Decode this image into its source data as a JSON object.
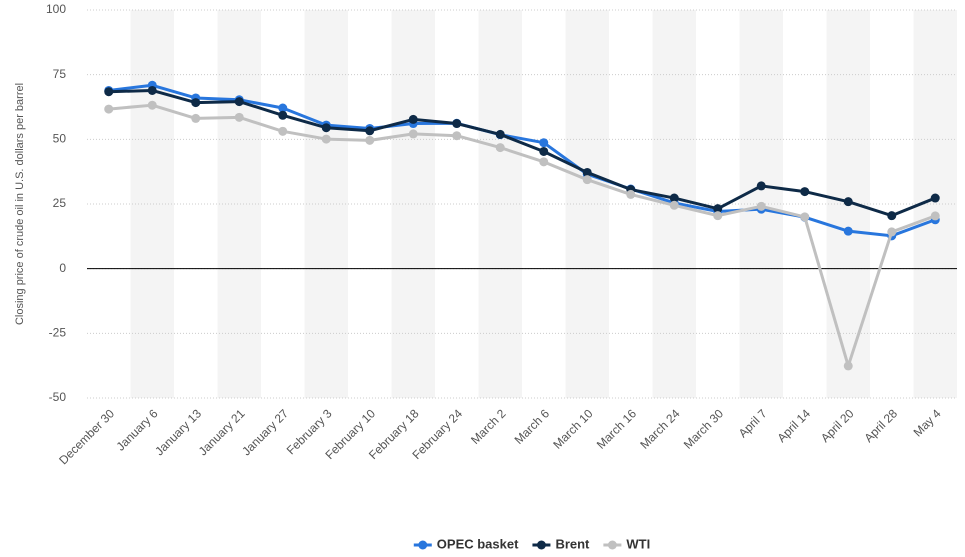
{
  "chart_data": {
    "type": "line",
    "y_label": "Closing price of crude oil in U.S. dollars per barrel",
    "categories": [
      "December 30",
      "January 6",
      "January 13",
      "January 21",
      "January 27",
      "February 3",
      "February 10",
      "February 18",
      "February 24",
      "March 2",
      "March 6",
      "March 10",
      "March 16",
      "March 24",
      "March 30",
      "April 7",
      "April 14",
      "April 20",
      "April 28",
      "May 4"
    ],
    "series": [
      {
        "name": "OPEC basket",
        "color": "#2876dd",
        "values": [
          68.9,
          70.9,
          66.0,
          65.3,
          62.1,
          55.5,
          54.2,
          56.1,
          56.2,
          51.8,
          48.7,
          36.5,
          30.8,
          25.4,
          22.1,
          23.0,
          19.9,
          14.5,
          12.7,
          18.9
        ]
      },
      {
        "name": "Brent",
        "color": "#0e2a47",
        "values": [
          68.4,
          68.9,
          64.2,
          64.6,
          59.3,
          54.5,
          53.3,
          57.7,
          56.1,
          51.9,
          45.3,
          37.2,
          30.6,
          27.3,
          23.2,
          32.0,
          29.8,
          25.9,
          20.5,
          27.3
        ]
      },
      {
        "name": "WTI",
        "color": "#c0c0c0",
        "values": [
          61.7,
          63.2,
          58.1,
          58.5,
          53.1,
          50.1,
          49.6,
          52.1,
          51.4,
          46.8,
          41.3,
          34.4,
          28.7,
          24.5,
          20.5,
          24.1,
          20.0,
          -37.6,
          14.2,
          20.4
        ]
      }
    ],
    "ylim": [
      -50,
      100
    ],
    "yticks": [
      -50,
      -25,
      0,
      25,
      50,
      75,
      100
    ],
    "grid": true,
    "legend": "bottom"
  }
}
